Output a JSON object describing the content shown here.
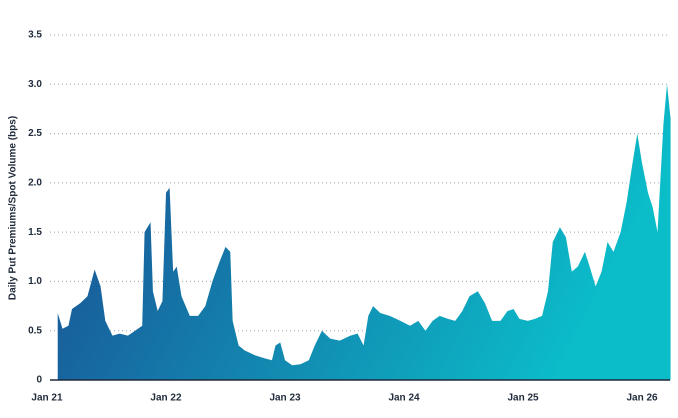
{
  "chart_data": {
    "type": "area",
    "y_label": "Daily Put Premiums/Spot Volume (bps)",
    "colors": [
      "#1b4a92",
      "#0bbcc9"
    ],
    "grid": true,
    "xlim": [
      2021,
      2026.235
    ],
    "ylim": [
      0,
      3.5
    ],
    "xticks": [
      {
        "value": 2021,
        "label": "Jan 21"
      },
      {
        "value": 2022,
        "label": "Jan 22"
      },
      {
        "value": 2023,
        "label": "Jan 23"
      },
      {
        "value": 2024,
        "label": "Jan 24"
      },
      {
        "value": 2025,
        "label": "Jan 25"
      },
      {
        "value": 2026,
        "label": "Jan 26"
      }
    ],
    "yticks": [
      0,
      0.5,
      {
        "value": 1,
        "label": "1.0"
      },
      1.5,
      {
        "value": 2,
        "label": "2.0"
      },
      2.5,
      {
        "value": 3,
        "label": "3.0"
      },
      3.5
    ],
    "x": [
      2021.09,
      2021.13,
      2021.18,
      2021.21,
      2021.28,
      2021.34,
      2021.4,
      2021.45,
      2021.49,
      2021.55,
      2021.61,
      2021.68,
      2021.74,
      2021.8,
      2021.82,
      2021.87,
      2021.89,
      2021.93,
      2021.97,
      2022.0,
      2022.03,
      2022.06,
      2022.09,
      2022.13,
      2022.2,
      2022.27,
      2022.33,
      2022.39,
      2022.45,
      2022.5,
      2022.54,
      2022.56,
      2022.61,
      2022.66,
      2022.75,
      2022.83,
      2022.89,
      2022.92,
      2022.96,
      2023.0,
      2023.06,
      2023.13,
      2023.2,
      2023.25,
      2023.31,
      2023.38,
      2023.46,
      2023.55,
      2023.61,
      2023.66,
      2023.7,
      2023.74,
      2023.8,
      2023.88,
      2023.97,
      2024.05,
      2024.12,
      2024.18,
      2024.24,
      2024.3,
      2024.37,
      2024.43,
      2024.49,
      2024.55,
      2024.62,
      2024.68,
      2024.74,
      2024.81,
      2024.87,
      2024.92,
      2024.97,
      2025.04,
      2025.1,
      2025.16,
      2025.21,
      2025.25,
      2025.31,
      2025.36,
      2025.41,
      2025.46,
      2025.52,
      2025.56,
      2025.61,
      2025.66,
      2025.71,
      2025.76,
      2025.82,
      2025.87,
      2025.92,
      2025.96,
      2026.0,
      2026.05,
      2026.09,
      2026.13,
      2026.18,
      2026.21,
      2026.24
    ],
    "values": [
      0.68,
      0.52,
      0.55,
      0.72,
      0.78,
      0.85,
      1.12,
      0.95,
      0.6,
      0.45,
      0.47,
      0.45,
      0.5,
      0.55,
      1.5,
      1.6,
      0.9,
      0.7,
      0.8,
      1.9,
      1.95,
      1.1,
      1.15,
      0.85,
      0.65,
      0.65,
      0.75,
      1.0,
      1.2,
      1.35,
      1.3,
      0.6,
      0.35,
      0.3,
      0.25,
      0.22,
      0.2,
      0.35,
      0.38,
      0.2,
      0.15,
      0.16,
      0.2,
      0.35,
      0.5,
      0.42,
      0.4,
      0.45,
      0.47,
      0.35,
      0.65,
      0.75,
      0.68,
      0.65,
      0.6,
      0.55,
      0.6,
      0.5,
      0.6,
      0.65,
      0.62,
      0.6,
      0.7,
      0.85,
      0.9,
      0.78,
      0.6,
      0.6,
      0.7,
      0.72,
      0.62,
      0.6,
      0.62,
      0.65,
      0.9,
      1.4,
      1.55,
      1.45,
      1.1,
      1.15,
      1.3,
      1.15,
      0.95,
      1.1,
      1.4,
      1.3,
      1.5,
      1.8,
      2.2,
      2.5,
      2.2,
      1.9,
      1.75,
      1.5,
      2.6,
      3.0,
      2.65
    ]
  }
}
